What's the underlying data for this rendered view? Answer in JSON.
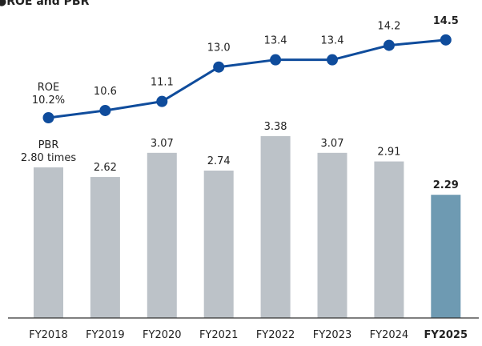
{
  "chart_data": {
    "title": "●ROE and PBR",
    "categories": [
      "FY2018",
      "FY2019",
      "FY2020",
      "FY2021",
      "FY2022",
      "FY2023",
      "FY2024",
      "FY2025"
    ],
    "highlight_index": 7,
    "roe": {
      "type": "line",
      "name": "ROE",
      "unit": "%",
      "values": [
        10.2,
        10.6,
        11.1,
        13.0,
        13.4,
        13.4,
        14.2,
        14.5
      ],
      "labels": [
        "10.2%",
        "10.6",
        "11.1",
        "13.0",
        "13.4",
        "13.4",
        "14.2",
        "14.5"
      ],
      "color": "#0f4c9c"
    },
    "pbr": {
      "type": "bar",
      "name": "PBR",
      "unit": "times",
      "values": [
        2.8,
        2.62,
        3.07,
        2.74,
        3.38,
        3.07,
        2.91,
        2.29
      ],
      "labels": [
        "2.80 times",
        "2.62",
        "3.07",
        "2.74",
        "3.38",
        "3.07",
        "2.91",
        "2.29"
      ],
      "color": "#bcc2c8",
      "highlight_color": "#6e9ab2"
    },
    "grid": false
  }
}
